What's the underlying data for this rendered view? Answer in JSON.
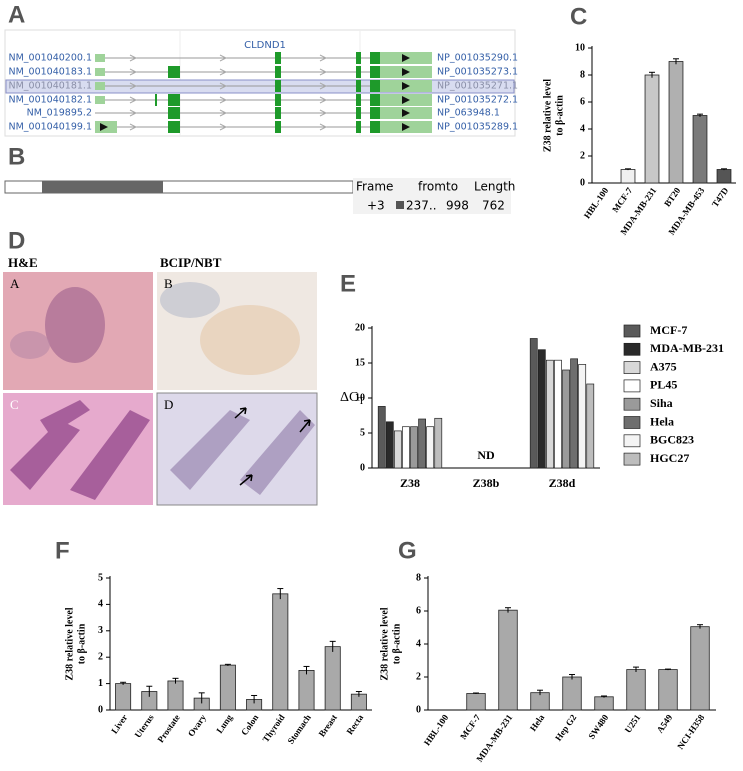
{
  "panel_a": {
    "label": "A",
    "gene": "CLDND1",
    "transcripts": [
      {
        "mrna": "NM_001040200.1",
        "protein": "NP_001035290.1"
      },
      {
        "mrna": "NM_001040183.1",
        "protein": "NP_001035273.1"
      },
      {
        "mrna": "NM_001040181.1",
        "protein": "NP_001035271.1"
      },
      {
        "mrna": "NM_001040182.1",
        "protein": "NP_001035272.1"
      },
      {
        "mrna": "NM_019895.2",
        "protein": "NP_063948.1"
      },
      {
        "mrna": "NM_001040199.1",
        "protein": "NP_001035289.1"
      }
    ]
  },
  "panel_b": {
    "label": "B",
    "header": [
      "Frame",
      "from",
      "to",
      "Length"
    ],
    "row": [
      "+3",
      "237..",
      "998",
      "762"
    ]
  },
  "panel_d": {
    "label": "D",
    "stains": [
      "H&E",
      "BCIP/NBT"
    ],
    "subpanels": [
      "A",
      "B",
      "C",
      "D"
    ]
  },
  "chart_data": [
    {
      "type": "bar",
      "label": "C",
      "ylabel": [
        "Z38 relative level",
        "to β-actin"
      ],
      "categories": [
        "HBL-100",
        "MCF-7",
        "MDA-MB-231",
        "BT20",
        "MDA-MB-453",
        "T47D"
      ],
      "values": [
        0,
        1,
        8,
        9,
        5,
        1
      ],
      "errors": [
        0,
        0.05,
        0.2,
        0.2,
        0.1,
        0.05
      ],
      "colors": [
        "#ffffff",
        "#f0f0f0",
        "#c8c8c8",
        "#b0b0b0",
        "#7a7a7a",
        "#555555"
      ],
      "ylim": [
        0,
        10
      ],
      "yticks": [
        0,
        2,
        4,
        6,
        8,
        10
      ]
    },
    {
      "type": "grouped-bar",
      "label": "E",
      "ylabel": "ΔC",
      "ylabel_sub": "T",
      "annotation": "ND",
      "categories": [
        "Z38",
        "Z38b",
        "Z38d"
      ],
      "series": [
        {
          "name": "MCF-7",
          "color": "#5a5a5a",
          "values": [
            8.8,
            null,
            18.5
          ]
        },
        {
          "name": "MDA-MB-231",
          "color": "#2a2a2a",
          "values": [
            6.6,
            null,
            16.9
          ]
        },
        {
          "name": "A375",
          "color": "#d8d8d8",
          "values": [
            5.3,
            null,
            15.4
          ]
        },
        {
          "name": "PL45",
          "color": "#ffffff",
          "values": [
            5.9,
            null,
            15.4
          ]
        },
        {
          "name": "Siha",
          "color": "#9a9a9a",
          "values": [
            5.9,
            null,
            14.0
          ]
        },
        {
          "name": "Hela",
          "color": "#6e6e6e",
          "values": [
            7.0,
            null,
            15.6
          ]
        },
        {
          "name": "BGC823",
          "color": "#f4f4f4",
          "values": [
            5.9,
            null,
            14.8
          ]
        },
        {
          "name": "HGC27",
          "color": "#bdbdbd",
          "values": [
            7.1,
            null,
            12.0
          ]
        }
      ],
      "ylim": [
        0,
        20
      ],
      "yticks": [
        0,
        5,
        10,
        15,
        20
      ]
    },
    {
      "type": "bar",
      "label": "F",
      "ylabel": [
        "Z38 relative level",
        "to β-actin"
      ],
      "categories": [
        "Liver",
        "Uterus",
        "Prostate",
        "Ovary",
        "Lung",
        "Colon",
        "Thyroid",
        "Stomach",
        "Breast",
        "Recta"
      ],
      "values": [
        1.0,
        0.7,
        1.1,
        0.45,
        1.7,
        0.4,
        4.4,
        1.5,
        2.4,
        0.6
      ],
      "errors": [
        0.05,
        0.2,
        0.1,
        0.2,
        0.03,
        0.15,
        0.2,
        0.15,
        0.2,
        0.1
      ],
      "color": "#a9a9a9",
      "ylim": [
        0,
        5
      ],
      "yticks": [
        0,
        1,
        2,
        3,
        4,
        5
      ]
    },
    {
      "type": "bar",
      "label": "G",
      "ylabel": [
        "Z38 relative level",
        "to β-actin"
      ],
      "categories": [
        "HBL-100",
        "MCF-7",
        "MDA-MB-231",
        "Hela",
        "Hep G2",
        "SW480",
        "U251",
        "A549",
        "NCI-H358"
      ],
      "values": [
        0,
        1.0,
        6.05,
        1.05,
        2.0,
        0.8,
        2.45,
        2.45,
        5.05
      ],
      "errors": [
        0,
        0.03,
        0.15,
        0.15,
        0.15,
        0.05,
        0.15,
        0.03,
        0.12
      ],
      "color": "#a9a9a9",
      "ylim": [
        0,
        8
      ],
      "yticks": [
        0,
        2,
        4,
        6,
        8
      ]
    }
  ]
}
